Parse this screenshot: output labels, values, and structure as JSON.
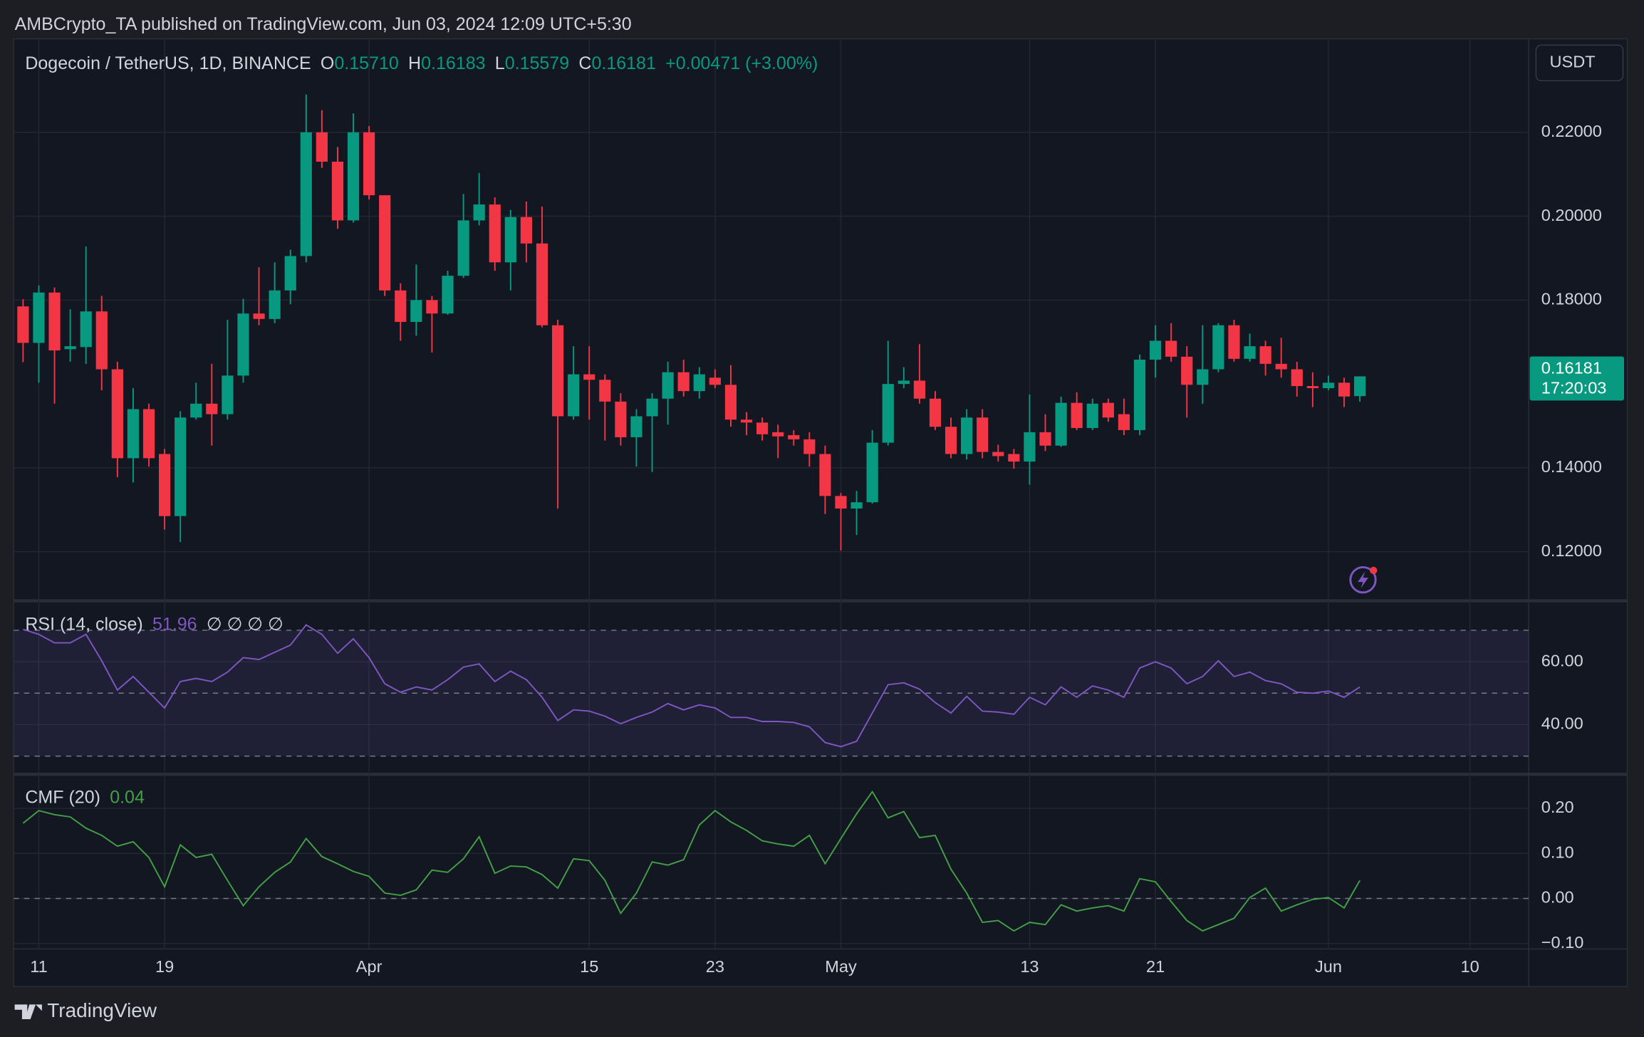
{
  "header": {
    "publisher": "AMBCrypto_TA published on TradingView.com, Jun 03, 2024 12:09 UTC+5:30"
  },
  "footer": {
    "brand": "TradingView"
  },
  "chart_data": [
    {
      "type": "candlestick",
      "title": "Dogecoin / TetherUS, 1D, BINANCE",
      "legend": [
        {
          "key": "O",
          "value": "0.15710"
        },
        {
          "key": "H",
          "value": "0.16183"
        },
        {
          "key": "L",
          "value": "0.15579"
        },
        {
          "key": "C",
          "value": "0.16181"
        }
      ],
      "change": "+0.00471 (+3.00%)",
      "currency": "USDT",
      "price_tag": "0.16181",
      "countdown": "17:20:03",
      "up_color": "#089981",
      "down_color": "#f23645",
      "open": [
        0.1785,
        0.1698,
        0.1818,
        0.1683,
        0.1688,
        0.1773,
        0.1635,
        0.1423,
        0.154,
        0.1433,
        0.1285,
        0.152,
        0.1553,
        0.1528,
        0.162,
        0.1768,
        0.1755,
        0.1823,
        0.1905,
        0.22,
        0.213,
        0.199,
        0.22,
        0.205,
        0.1823,
        0.1748,
        0.18,
        0.1768,
        0.1858,
        0.199,
        0.2028,
        0.189,
        0.1998,
        0.1935,
        0.174,
        0.1523,
        0.1623,
        0.161,
        0.1558,
        0.1473,
        0.1523,
        0.1565,
        0.1628,
        0.1583,
        0.1615,
        0.1598,
        0.1515,
        0.1508,
        0.1485,
        0.1478,
        0.1468,
        0.1433,
        0.1333,
        0.1303,
        0.1318,
        0.146,
        0.16,
        0.1608,
        0.1565,
        0.1498,
        0.1433,
        0.152,
        0.1438,
        0.1433,
        0.1415,
        0.1485,
        0.1453,
        0.1555,
        0.1495,
        0.1555,
        0.1528,
        0.149,
        0.1658,
        0.1703,
        0.1665,
        0.1598,
        0.1635,
        0.174,
        0.166,
        0.169,
        0.1648,
        0.1635,
        0.1595,
        0.159,
        0.1603,
        0.1571
      ],
      "high": [
        0.1802,
        0.1835,
        0.183,
        0.1778,
        0.1928,
        0.181,
        0.1653,
        0.159,
        0.1553,
        0.1445,
        0.1535,
        0.1603,
        0.1648,
        0.1753,
        0.1803,
        0.1878,
        0.189,
        0.192,
        0.229,
        0.2253,
        0.2165,
        0.2245,
        0.2215,
        0.205,
        0.184,
        0.1885,
        0.181,
        0.187,
        0.2053,
        0.2103,
        0.2045,
        0.2015,
        0.2035,
        0.2023,
        0.1753,
        0.169,
        0.169,
        0.1623,
        0.1578,
        0.154,
        0.1578,
        0.1653,
        0.1658,
        0.164,
        0.1635,
        0.1645,
        0.1533,
        0.152,
        0.1503,
        0.149,
        0.1485,
        0.1453,
        0.134,
        0.1345,
        0.149,
        0.1703,
        0.164,
        0.1695,
        0.1583,
        0.152,
        0.154,
        0.154,
        0.1455,
        0.1445,
        0.1575,
        0.1528,
        0.157,
        0.158,
        0.1565,
        0.1565,
        0.1565,
        0.167,
        0.174,
        0.1745,
        0.169,
        0.174,
        0.1745,
        0.1753,
        0.172,
        0.1703,
        0.171,
        0.1653,
        0.1628,
        0.162,
        0.1615,
        0.16183
      ],
      "low": [
        0.1652,
        0.1603,
        0.1553,
        0.1653,
        0.1648,
        0.1585,
        0.1378,
        0.1365,
        0.1403,
        0.1253,
        0.1223,
        0.1515,
        0.1453,
        0.1515,
        0.1603,
        0.174,
        0.1745,
        0.179,
        0.189,
        0.2115,
        0.197,
        0.1985,
        0.204,
        0.181,
        0.1703,
        0.1715,
        0.1675,
        0.1765,
        0.1853,
        0.1978,
        0.187,
        0.1823,
        0.189,
        0.1735,
        0.1303,
        0.1515,
        0.1515,
        0.1465,
        0.1453,
        0.1403,
        0.139,
        0.1503,
        0.157,
        0.1565,
        0.159,
        0.1498,
        0.1478,
        0.1465,
        0.1423,
        0.1453,
        0.1403,
        0.129,
        0.1203,
        0.124,
        0.1315,
        0.1453,
        0.159,
        0.1553,
        0.149,
        0.1423,
        0.142,
        0.1423,
        0.1415,
        0.1398,
        0.136,
        0.144,
        0.145,
        0.149,
        0.149,
        0.151,
        0.1478,
        0.1478,
        0.1615,
        0.1653,
        0.152,
        0.1553,
        0.1628,
        0.1653,
        0.1653,
        0.162,
        0.1615,
        0.157,
        0.1545,
        0.1585,
        0.1545,
        0.15579
      ],
      "close": [
        0.1698,
        0.1818,
        0.168,
        0.169,
        0.1773,
        0.1635,
        0.1423,
        0.154,
        0.1423,
        0.1285,
        0.152,
        0.1553,
        0.1528,
        0.162,
        0.1768,
        0.1755,
        0.1823,
        0.1905,
        0.22,
        0.213,
        0.199,
        0.22,
        0.205,
        0.1823,
        0.1748,
        0.18,
        0.1768,
        0.1858,
        0.199,
        0.2028,
        0.189,
        0.1998,
        0.1935,
        0.174,
        0.1523,
        0.1623,
        0.161,
        0.1558,
        0.1473,
        0.1523,
        0.1565,
        0.1628,
        0.1583,
        0.1623,
        0.1598,
        0.1515,
        0.1508,
        0.148,
        0.1475,
        0.1468,
        0.1433,
        0.1333,
        0.1303,
        0.1318,
        0.146,
        0.16,
        0.1608,
        0.1565,
        0.1498,
        0.1433,
        0.152,
        0.1438,
        0.1428,
        0.1415,
        0.1485,
        0.1453,
        0.1555,
        0.1495,
        0.1553,
        0.152,
        0.149,
        0.1658,
        0.1703,
        0.1665,
        0.1598,
        0.1635,
        0.174,
        0.166,
        0.169,
        0.1648,
        0.1635,
        0.1595,
        0.159,
        0.1603,
        0.157,
        0.16181
      ],
      "ylim": [
        0.1088,
        0.2423
      ],
      "yticks": [
        {
          "value": 0.12,
          "label": "0.12000"
        },
        {
          "value": 0.14,
          "label": "0.14000"
        },
        {
          "value": 0.18,
          "label": "0.18000"
        },
        {
          "value": 0.2,
          "label": "0.20000"
        },
        {
          "value": 0.22,
          "label": "0.22000"
        }
      ],
      "xticks": [
        {
          "value": 1,
          "label": "11"
        },
        {
          "value": 9,
          "label": "19"
        },
        {
          "value": 22,
          "label": "Apr"
        },
        {
          "value": 36,
          "label": "15"
        },
        {
          "value": 44,
          "label": "23"
        },
        {
          "value": 52,
          "label": "May"
        },
        {
          "value": 64,
          "label": "13"
        },
        {
          "value": 72,
          "label": "21"
        },
        {
          "value": 83,
          "label": "Jun"
        },
        {
          "value": 92,
          "label": "10"
        }
      ],
      "grid": true
    },
    {
      "type": "line",
      "title": "RSI (14, close)",
      "value_label": "51.96",
      "extra": "∅ ∅ ∅ ∅",
      "color": "#7e57c2",
      "band_fill": "rgba(126,87,194,0.12)",
      "values": [
        70.3,
        68.7,
        66,
        66,
        68.7,
        60.3,
        51,
        55.3,
        50.3,
        45.3,
        53.7,
        54.7,
        53.7,
        56.7,
        61.3,
        60.7,
        63,
        65.3,
        71.7,
        68.7,
        62.7,
        67.3,
        61.3,
        53,
        50.3,
        52,
        51,
        54.3,
        58.3,
        59.3,
        53.7,
        57,
        54.3,
        48.7,
        41.3,
        44.7,
        44.3,
        42.7,
        40.3,
        42.3,
        44,
        46.7,
        44.7,
        46.3,
        45.3,
        42.3,
        42.3,
        41,
        41,
        40.7,
        39.3,
        34.3,
        33,
        34.7,
        43.7,
        52.7,
        53.3,
        51.3,
        47,
        43.7,
        49,
        44.3,
        44,
        43.3,
        48.7,
        46.3,
        52,
        48.7,
        52.3,
        51,
        48.7,
        58,
        60,
        58,
        53,
        55.3,
        60.3,
        55.3,
        56.7,
        54,
        53,
        50.3,
        50,
        50.7,
        48.7,
        51.96
      ],
      "ylim": [
        24.7,
        78.7
      ],
      "yticks": [
        {
          "value": 40,
          "label": "40.00"
        },
        {
          "value": 60,
          "label": "60.00"
        }
      ],
      "bands": [
        30,
        50,
        70
      ],
      "grid": true
    },
    {
      "type": "line",
      "title": "CMF (20)",
      "value_label": "0.04",
      "color": "#43a047",
      "values": [
        0.167,
        0.195,
        0.186,
        0.181,
        0.156,
        0.14,
        0.116,
        0.126,
        0.091,
        0.026,
        0.119,
        0.091,
        0.098,
        0.04,
        -0.016,
        0.026,
        0.058,
        0.081,
        0.133,
        0.093,
        0.077,
        0.06,
        0.049,
        0.012,
        0.007,
        0.019,
        0.063,
        0.058,
        0.088,
        0.137,
        0.056,
        0.072,
        0.07,
        0.053,
        0.023,
        0.088,
        0.084,
        0.04,
        -0.033,
        0.012,
        0.081,
        0.074,
        0.086,
        0.163,
        0.195,
        0.17,
        0.151,
        0.128,
        0.121,
        0.116,
        0.14,
        0.077,
        0.133,
        0.188,
        0.237,
        0.179,
        0.193,
        0.135,
        0.14,
        0.065,
        0.012,
        -0.053,
        -0.049,
        -0.072,
        -0.053,
        -0.058,
        -0.014,
        -0.028,
        -0.021,
        -0.016,
        -0.028,
        0.044,
        0.037,
        -0.007,
        -0.049,
        -0.072,
        -0.058,
        -0.044,
        0.002,
        0.023,
        -0.028,
        -0.014,
        -0.002,
        0.002,
        -0.021,
        0.04
      ],
      "ylim": [
        -0.112,
        0.272
      ],
      "yticks": [
        {
          "value": -0.1,
          "label": "−0.10"
        },
        {
          "value": 0,
          "label": "0.00"
        },
        {
          "value": 0.1,
          "label": "0.10"
        },
        {
          "value": 0.2,
          "label": "0.20"
        }
      ],
      "bands": [
        0
      ],
      "grid": true
    }
  ]
}
